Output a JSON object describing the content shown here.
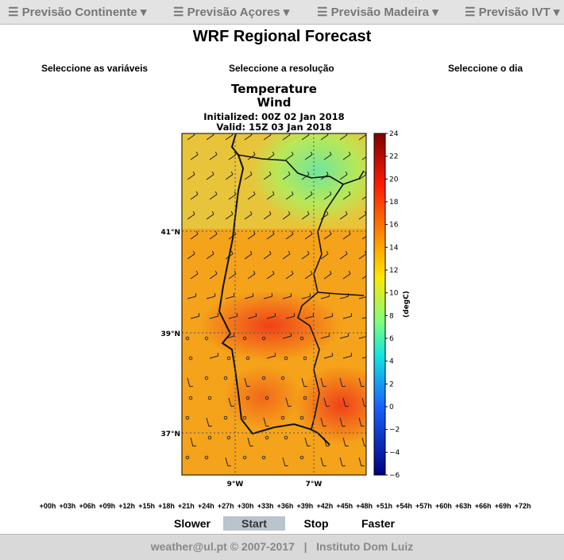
{
  "nav": [
    "Previsão Continente",
    "Previsão Açores",
    "Previsão Madeira",
    "Previsão IVT"
  ],
  "header": {
    "title": "WRF Regional Forecast"
  },
  "selectors": [
    "Seleccione as variáveis",
    "Seleccione a resolução",
    "Seleccione o dia"
  ],
  "map": {
    "title": [
      "Temperature",
      "Wind"
    ],
    "initialized": "Initialized: 00Z 02 Jan 2018",
    "valid": "Valid: 15Z 03 Jan 2018",
    "lat_labels": [
      "41°N",
      "39°N",
      "37°N"
    ],
    "lon_labels": [
      "9°W",
      "7°W"
    ],
    "colorbar": {
      "label": "(degC)",
      "ticks": [
        "24",
        "22",
        "20",
        "18",
        "16",
        "14",
        "12",
        "10",
        "8",
        "6",
        "4",
        "2",
        "0",
        "−2",
        "−4",
        "−6"
      ]
    }
  },
  "timesteps": [
    "+00h",
    "+03h",
    "+06h",
    "+09h",
    "+12h",
    "+15h",
    "+18h",
    "+21h",
    "+24h",
    "+27h",
    "+30h",
    "+33h",
    "+36h",
    "+39h",
    "+42h",
    "+45h",
    "+48h",
    "+51h",
    "+54h",
    "+57h",
    "+60h",
    "+63h",
    "+66h",
    "+69h",
    "+72h"
  ],
  "controls": [
    "Slower",
    "Start",
    "Stop",
    "Faster"
  ],
  "footer": {
    "contact": "weather@ul.pt © 2007-2017",
    "separator": "|",
    "institute": "Instituto Dom Luiz"
  }
}
